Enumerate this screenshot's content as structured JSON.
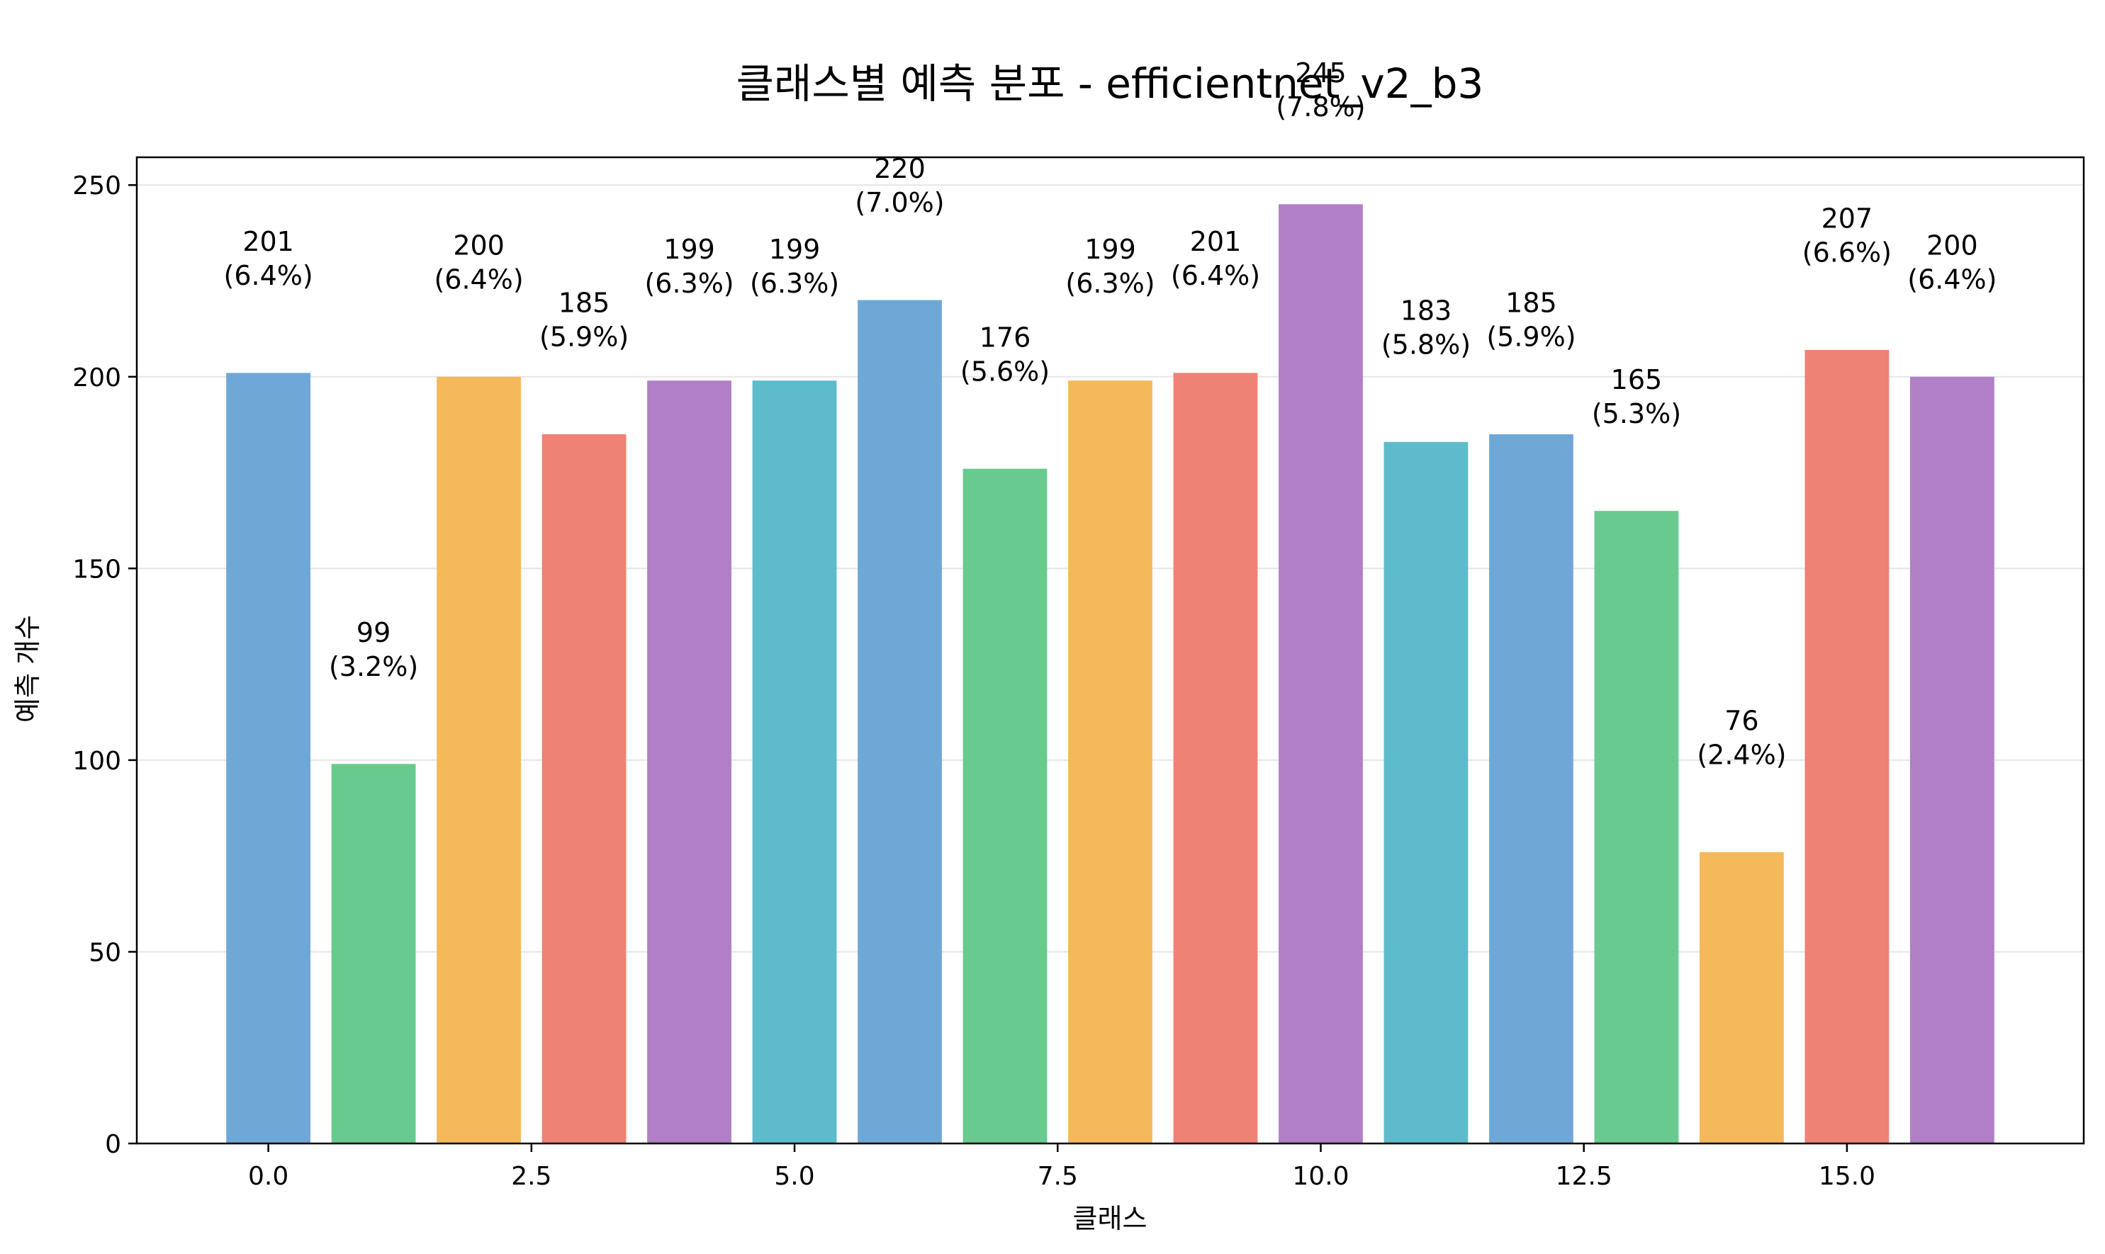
{
  "chart_data": {
    "type": "bar",
    "title": "클래스별 예측 분포 - efficientnet_v2_b3",
    "xlabel": "클래스",
    "ylabel": "예측 개수",
    "x": [
      0,
      1,
      2,
      3,
      4,
      5,
      6,
      7,
      8,
      9,
      10,
      11,
      12,
      13,
      14,
      15,
      16
    ],
    "values": [
      201,
      99,
      200,
      185,
      199,
      199,
      220,
      176,
      199,
      201,
      245,
      183,
      185,
      165,
      76,
      207,
      200
    ],
    "value_labels": [
      "201",
      "99",
      "200",
      "185",
      "199",
      "199",
      "220",
      "176",
      "199",
      "201",
      "245",
      "183",
      "185",
      "165",
      "76",
      "207",
      "200"
    ],
    "percent_labels": [
      "(6.4%)",
      "(3.2%)",
      "(6.4%)",
      "(5.9%)",
      "(6.3%)",
      "(6.3%)",
      "(7.0%)",
      "(5.6%)",
      "(6.3%)",
      "(6.4%)",
      "(7.8%)",
      "(5.8%)",
      "(5.9%)",
      "(5.3%)",
      "(2.4%)",
      "(6.6%)",
      "(6.4%)"
    ],
    "colors": [
      "#6fa8d6",
      "#68ca8e",
      "#f4b95b",
      "#ee8274",
      "#b07fc6",
      "#5ebbcc",
      "#6fa8d6",
      "#68ca8e",
      "#f4b95b",
      "#ee8274",
      "#b07fc6",
      "#5ebbcc",
      "#6fa8d6",
      "#68ca8e",
      "#f4b95b",
      "#ee8274",
      "#b07fc6"
    ],
    "xticks": [
      0,
      2.5,
      5,
      7.5,
      10,
      12.5,
      15
    ],
    "xtick_labels": [
      "0.0",
      "2.5",
      "5.0",
      "7.5",
      "10.0",
      "12.5",
      "15.0"
    ],
    "yticks": [
      0,
      50,
      100,
      150,
      200,
      250
    ],
    "ytick_labels": [
      "0",
      "50",
      "100",
      "150",
      "200",
      "250"
    ],
    "xlim": [
      -1.25,
      17.25
    ],
    "ylim": [
      0,
      257.25
    ],
    "grid": "horizontal",
    "legend": "none"
  }
}
